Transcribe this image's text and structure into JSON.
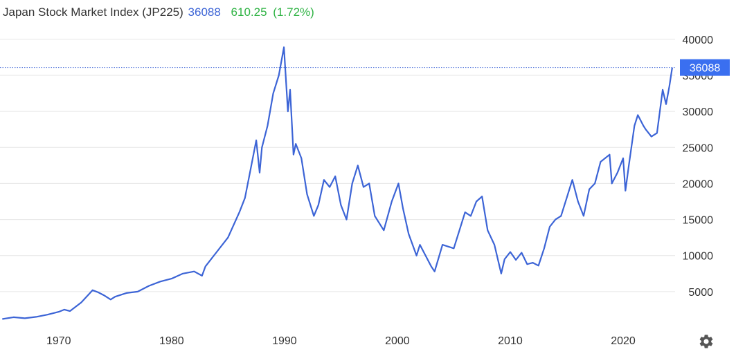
{
  "header": {
    "name": "Japan Stock Market Index (JP225)",
    "value": "36088",
    "change": "610.25",
    "change_pct": "(1.72%)"
  },
  "colors": {
    "line": "#3c64d6",
    "change": "#2fb344",
    "grid": "#e6e6e6",
    "badge": "#3a6ff0"
  },
  "settings_icon": "gear-icon",
  "chart_data": {
    "type": "line",
    "title": "Japan Stock Market Index (JP225)",
    "xlabel": "",
    "ylabel": "",
    "xlim": [
      1964.8,
      2024.6
    ],
    "ylim": [
      0,
      42000
    ],
    "x_ticks": [
      1970,
      1980,
      1990,
      2000,
      2010,
      2020
    ],
    "y_ticks": [
      5000,
      10000,
      15000,
      20000,
      25000,
      30000,
      35000,
      40000
    ],
    "grid": "horizontal",
    "last_value_label": "36088",
    "series": [
      {
        "points": [
          [
            1965.0,
            1200
          ],
          [
            1966.0,
            1450
          ],
          [
            1967.0,
            1300
          ],
          [
            1968.0,
            1500
          ],
          [
            1969.0,
            1800
          ],
          [
            1970.0,
            2200
          ],
          [
            1970.5,
            2500
          ],
          [
            1971.0,
            2300
          ],
          [
            1972.0,
            3500
          ],
          [
            1973.0,
            5200
          ],
          [
            1973.5,
            4900
          ],
          [
            1974.0,
            4500
          ],
          [
            1974.6,
            3900
          ],
          [
            1975.0,
            4300
          ],
          [
            1976.0,
            4800
          ],
          [
            1977.0,
            5000
          ],
          [
            1978.0,
            5800
          ],
          [
            1979.0,
            6400
          ],
          [
            1980.0,
            6800
          ],
          [
            1981.0,
            7500
          ],
          [
            1982.0,
            7800
          ],
          [
            1982.7,
            7200
          ],
          [
            1983.0,
            8500
          ],
          [
            1984.0,
            10500
          ],
          [
            1985.0,
            12500
          ],
          [
            1986.0,
            16000
          ],
          [
            1986.5,
            18000
          ],
          [
            1987.0,
            22000
          ],
          [
            1987.5,
            26000
          ],
          [
            1987.8,
            21500
          ],
          [
            1988.0,
            25000
          ],
          [
            1988.5,
            28000
          ],
          [
            1989.0,
            32500
          ],
          [
            1989.5,
            35000
          ],
          [
            1989.95,
            38900
          ],
          [
            1990.3,
            30000
          ],
          [
            1990.5,
            33000
          ],
          [
            1990.8,
            24000
          ],
          [
            1991.0,
            25500
          ],
          [
            1991.5,
            23500
          ],
          [
            1992.0,
            18500
          ],
          [
            1992.6,
            15500
          ],
          [
            1993.0,
            17000
          ],
          [
            1993.5,
            20500
          ],
          [
            1994.0,
            19500
          ],
          [
            1994.5,
            21000
          ],
          [
            1995.0,
            17000
          ],
          [
            1995.5,
            15000
          ],
          [
            1996.0,
            20000
          ],
          [
            1996.5,
            22500
          ],
          [
            1997.0,
            19500
          ],
          [
            1997.5,
            20000
          ],
          [
            1998.0,
            15500
          ],
          [
            1998.8,
            13500
          ],
          [
            1999.5,
            17500
          ],
          [
            2000.1,
            20000
          ],
          [
            2000.5,
            16500
          ],
          [
            2001.0,
            13000
          ],
          [
            2001.7,
            10000
          ],
          [
            2002.0,
            11500
          ],
          [
            2003.0,
            8500
          ],
          [
            2003.3,
            7800
          ],
          [
            2004.0,
            11500
          ],
          [
            2005.0,
            11000
          ],
          [
            2006.0,
            16000
          ],
          [
            2006.5,
            15500
          ],
          [
            2007.0,
            17500
          ],
          [
            2007.5,
            18200
          ],
          [
            2008.0,
            13500
          ],
          [
            2008.6,
            11500
          ],
          [
            2009.2,
            7500
          ],
          [
            2009.5,
            9500
          ],
          [
            2010.0,
            10500
          ],
          [
            2010.5,
            9400
          ],
          [
            2011.0,
            10400
          ],
          [
            2011.5,
            8800
          ],
          [
            2012.0,
            9000
          ],
          [
            2012.5,
            8600
          ],
          [
            2013.0,
            11000
          ],
          [
            2013.5,
            14000
          ],
          [
            2014.0,
            15000
          ],
          [
            2014.5,
            15500
          ],
          [
            2015.0,
            18000
          ],
          [
            2015.5,
            20500
          ],
          [
            2016.0,
            17500
          ],
          [
            2016.5,
            15500
          ],
          [
            2017.0,
            19200
          ],
          [
            2017.5,
            20000
          ],
          [
            2018.0,
            23000
          ],
          [
            2018.8,
            24000
          ],
          [
            2019.0,
            20000
          ],
          [
            2019.5,
            21500
          ],
          [
            2020.0,
            23500
          ],
          [
            2020.2,
            19000
          ],
          [
            2020.5,
            22500
          ],
          [
            2021.0,
            28000
          ],
          [
            2021.3,
            29500
          ],
          [
            2021.8,
            28000
          ],
          [
            2022.0,
            27500
          ],
          [
            2022.5,
            26500
          ],
          [
            2023.0,
            27000
          ],
          [
            2023.5,
            33000
          ],
          [
            2023.8,
            31000
          ],
          [
            2024.1,
            33500
          ],
          [
            2024.35,
            36088
          ]
        ]
      }
    ]
  }
}
